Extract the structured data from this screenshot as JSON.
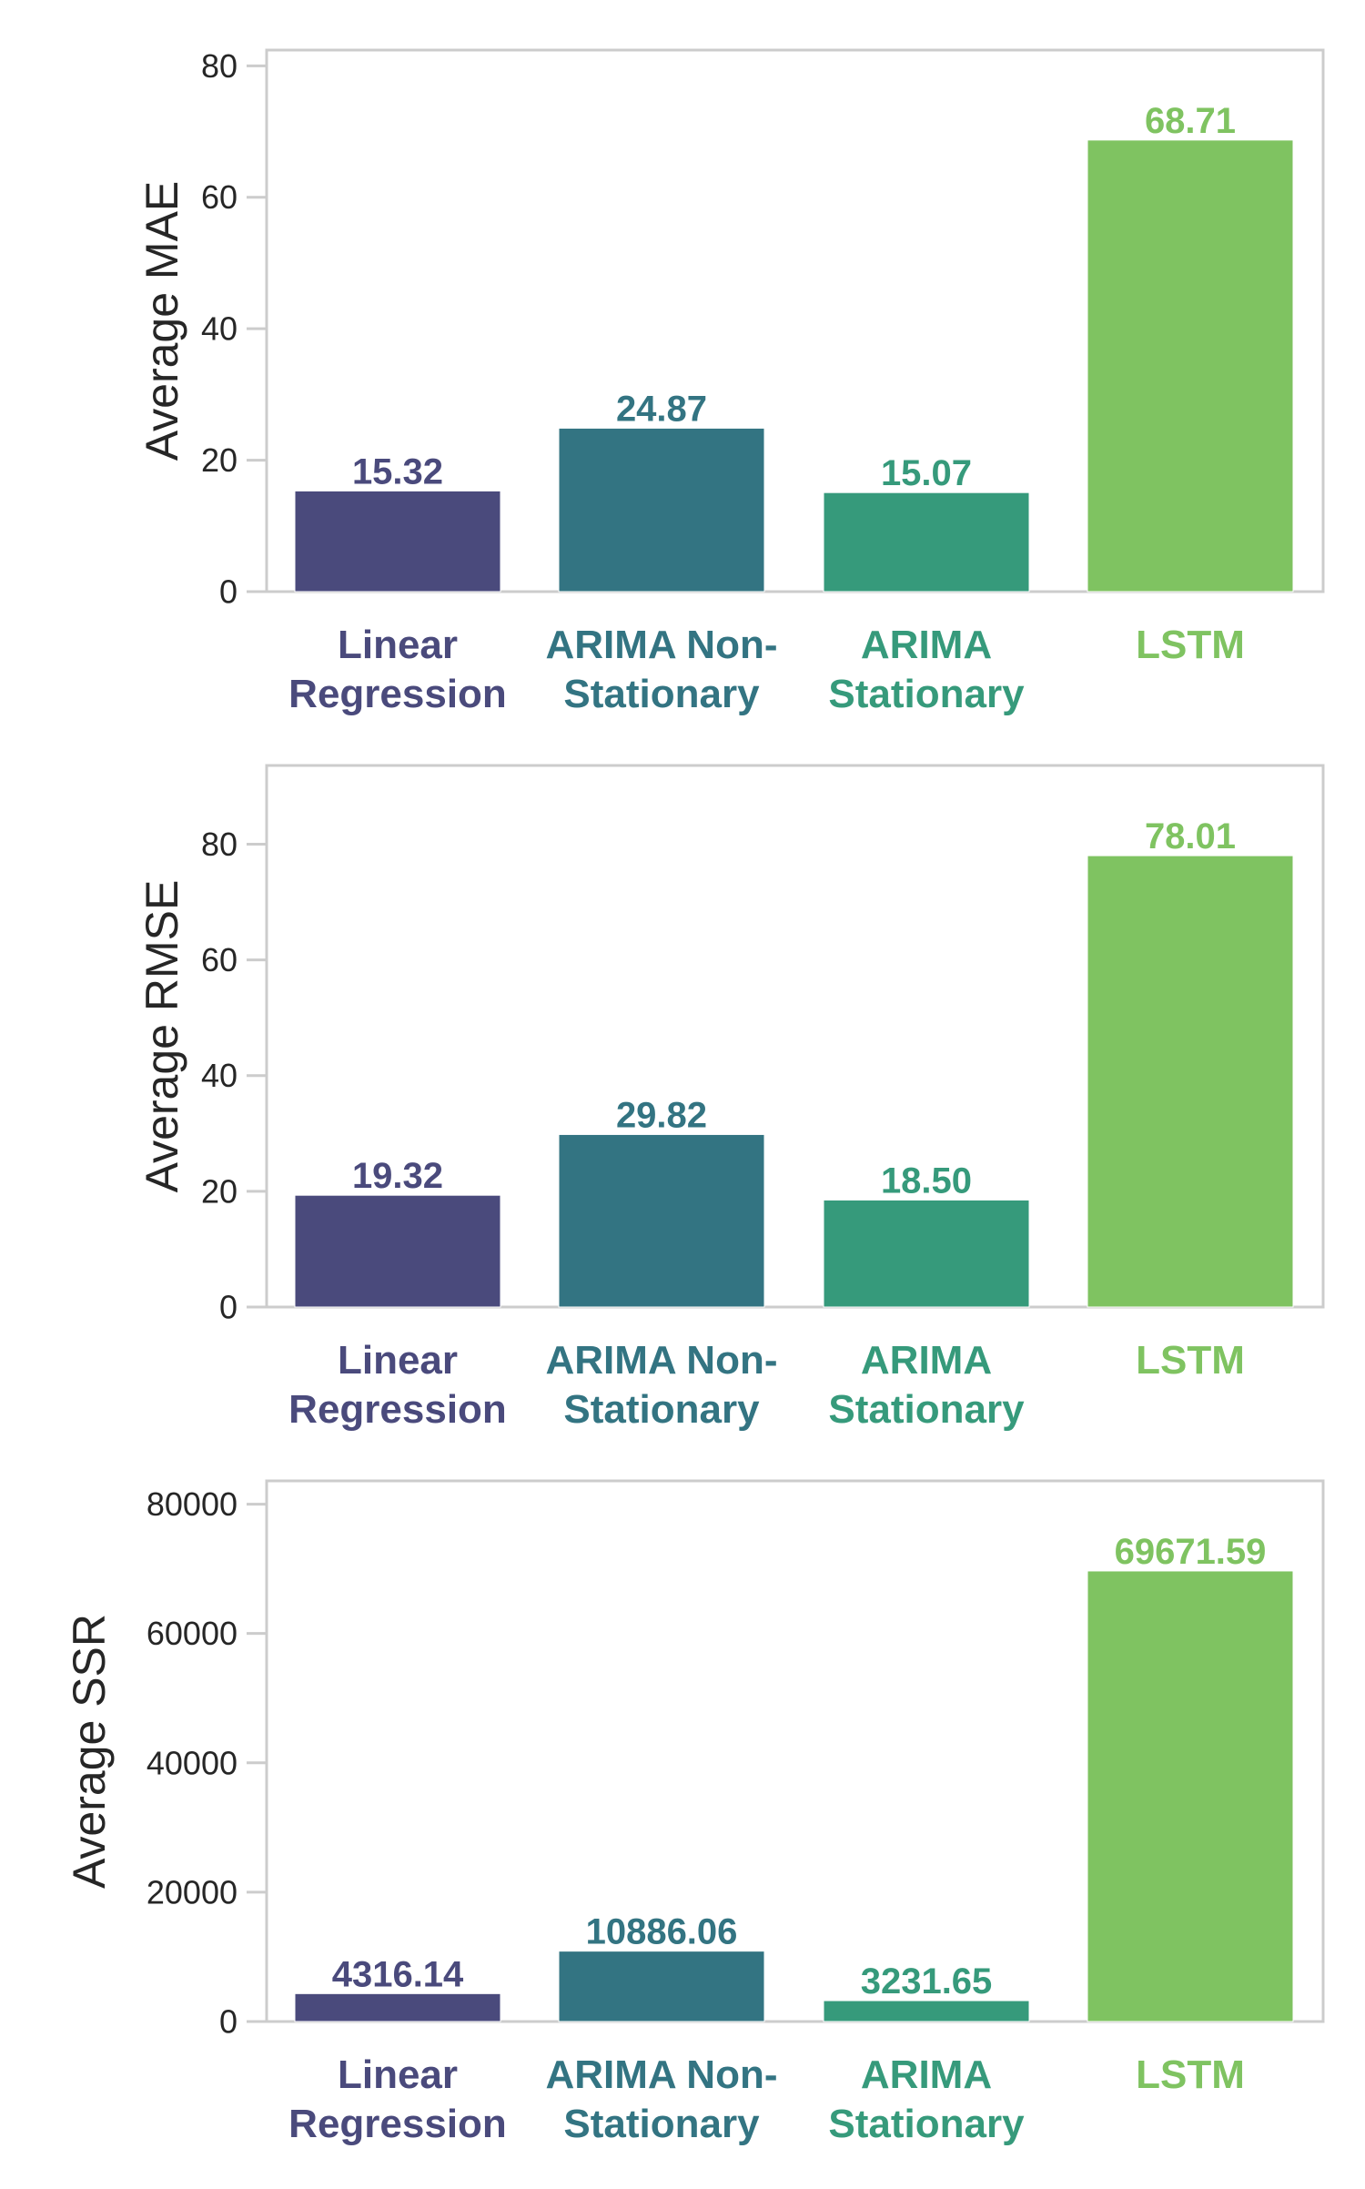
{
  "palette": [
    "#4a4a7c",
    "#337482",
    "#369a7b",
    "#7fc361"
  ],
  "frame_color": "#cccccc",
  "categories": [
    [
      "Linear",
      "Regression"
    ],
    [
      "ARIMA Non-",
      "Stationary"
    ],
    [
      "ARIMA",
      "Stationary"
    ],
    [
      "LSTM"
    ]
  ],
  "chart_data": [
    {
      "type": "bar",
      "ylabel": "Average MAE",
      "categories": [
        "Linear Regression",
        "ARIMA Non-Stationary",
        "ARIMA Stationary",
        "LSTM"
      ],
      "values": [
        15.32,
        24.87,
        15.07,
        68.71
      ],
      "value_labels": [
        "15.32",
        "24.87",
        "15.07",
        "68.71"
      ],
      "yticks": [
        0,
        20,
        40,
        60,
        80
      ],
      "ytick_labels": [
        "0",
        "20",
        "40",
        "60",
        "80"
      ],
      "ylim": [
        0,
        82.4
      ],
      "grid": false
    },
    {
      "type": "bar",
      "ylabel": "Average RMSE",
      "categories": [
        "Linear Regression",
        "ARIMA Non-Stationary",
        "ARIMA Stationary",
        "LSTM"
      ],
      "values": [
        19.32,
        29.82,
        18.5,
        78.01
      ],
      "value_labels": [
        "19.32",
        "29.82",
        "18.50",
        "78.01"
      ],
      "yticks": [
        0,
        20,
        40,
        60,
        80
      ],
      "ytick_labels": [
        "0",
        "20",
        "40",
        "60",
        "80"
      ],
      "ylim": [
        0,
        93.6
      ],
      "grid": false
    },
    {
      "type": "bar",
      "ylabel": "Average SSR",
      "categories": [
        "Linear Regression",
        "ARIMA Non-Stationary",
        "ARIMA Stationary",
        "LSTM"
      ],
      "values": [
        4316.14,
        10886.06,
        3231.65,
        69671.59
      ],
      "value_labels": [
        "4316.14",
        "10886.06",
        "3231.65",
        "69671.59"
      ],
      "yticks": [
        0,
        20000,
        40000,
        60000,
        80000
      ],
      "ytick_labels": [
        "0",
        "20000",
        "40000",
        "60000",
        "80000"
      ],
      "ylim": [
        0,
        83600
      ],
      "grid": false
    }
  ]
}
